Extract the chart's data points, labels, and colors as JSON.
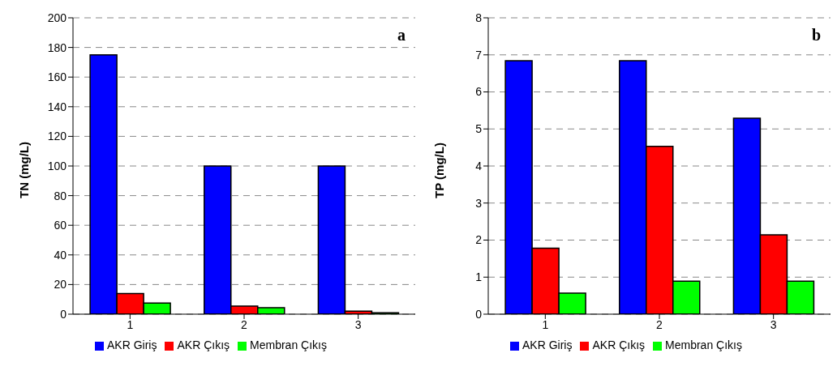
{
  "chart_data": [
    {
      "type": "bar",
      "ylabel": "TN (mg/L)",
      "annotations": [
        "a"
      ],
      "categories": [
        "1",
        "2",
        "3"
      ],
      "series": [
        {
          "name": "AKR Giriş",
          "color": "#0000ff",
          "values": [
            175,
            100,
            100
          ]
        },
        {
          "name": "AKR Çıkış",
          "color": "#ff0000",
          "values": [
            14,
            5.4,
            2.1
          ]
        },
        {
          "name": "Membran Çıkış",
          "color": "#00ff00",
          "values": [
            7.5,
            4.4,
            1
          ]
        }
      ],
      "ylim": [
        0,
        200
      ],
      "yticks": [
        0,
        20,
        40,
        60,
        80,
        100,
        120,
        140,
        160,
        180,
        200
      ],
      "grid": "y",
      "legend": "bottom"
    },
    {
      "type": "bar",
      "ylabel": "TP (mg/L)",
      "annotations": [
        "b"
      ],
      "categories": [
        "1",
        "2",
        "3"
      ],
      "series": [
        {
          "name": "AKR Giriş",
          "color": "#0000ff",
          "values": [
            6.84,
            6.84,
            5.29
          ]
        },
        {
          "name": "AKR Çıkış",
          "color": "#ff0000",
          "values": [
            1.78,
            4.53,
            2.14
          ]
        },
        {
          "name": "Membran Çıkış",
          "color": "#00ff00",
          "values": [
            0.57,
            0.89,
            0.89
          ]
        }
      ],
      "ylim": [
        0,
        8
      ],
      "yticks": [
        0,
        1,
        2,
        3,
        4,
        5,
        6,
        7,
        8
      ],
      "grid": "y",
      "legend": "bottom"
    }
  ]
}
